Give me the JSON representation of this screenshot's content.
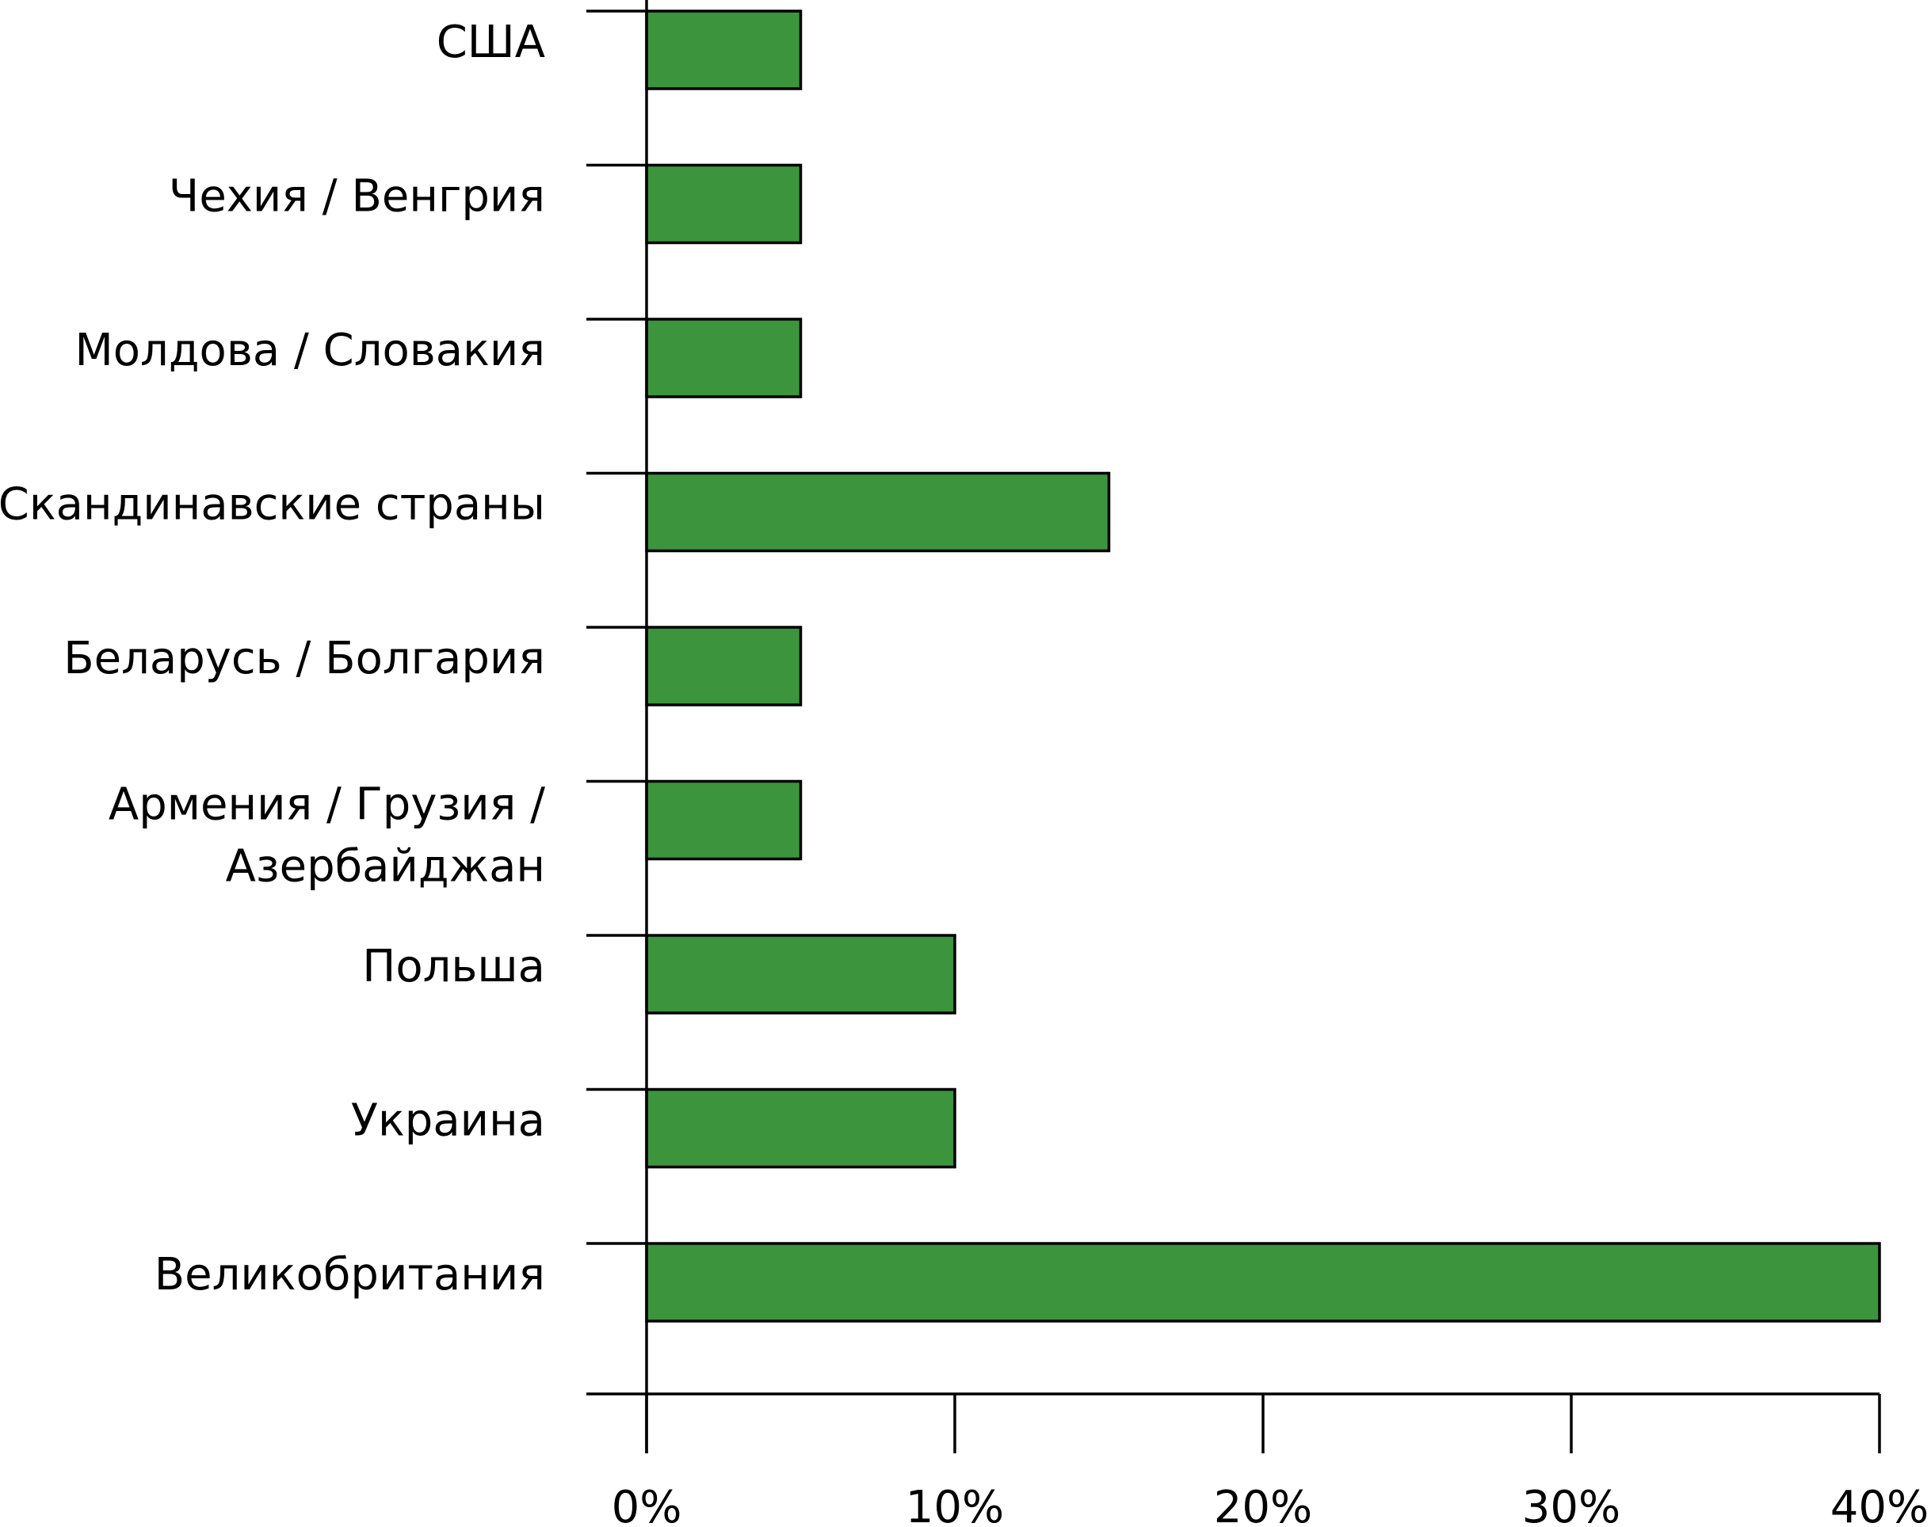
{
  "chart_data": {
    "type": "bar",
    "orientation": "horizontal",
    "title": "",
    "xlabel": "",
    "ylabel": "",
    "categories": [
      [
        "США"
      ],
      [
        "Чехия / Венгрия"
      ],
      [
        "Молдова / Словакия"
      ],
      [
        "Скандинавские страны"
      ],
      [
        "Беларусь / Болгария"
      ],
      [
        "Армения / Грузия /",
        "Азербайджан"
      ],
      [
        "Польша"
      ],
      [
        "Украина"
      ],
      [
        "Великобритания"
      ]
    ],
    "values": [
      5,
      5,
      5,
      15,
      5,
      5,
      10,
      10,
      40
    ],
    "value_unit": "%",
    "xlim": [
      0,
      40
    ],
    "xticks": [
      0,
      10,
      20,
      30,
      40
    ],
    "xtick_labels": [
      "0%",
      "10%",
      "20%",
      "30%",
      "40%"
    ],
    "bar_color": "#3c943c",
    "grid": false,
    "legend": "none"
  }
}
